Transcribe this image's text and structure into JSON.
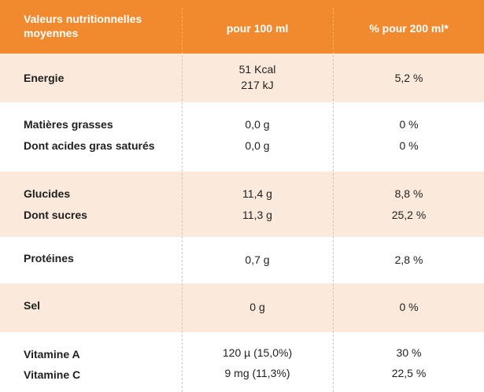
{
  "header": {
    "col1": "Valeurs nutritionnelles moyennes",
    "col2": "pour 100 ml",
    "col3": "% pour 200 ml*"
  },
  "rows": [
    {
      "label": "Energie",
      "per100": [
        "51 Kcal",
        "217 kJ"
      ],
      "per200": "5,2 %"
    },
    {
      "label": "Matières grasses",
      "per100": "0,0 g",
      "per200": "0 %"
    },
    {
      "label": "Dont acides gras saturés",
      "per100": "0,0 g",
      "per200": "0 %"
    },
    {
      "label": "Glucides",
      "per100": "11,4 g",
      "per200": "8,8 %"
    },
    {
      "label": "Dont sucres",
      "per100": "11,3 g",
      "per200": "25,2 %"
    },
    {
      "label": "Protéines",
      "per100": "0,7 g",
      "per200": "2,8 %"
    },
    {
      "label": "Sel",
      "per100": "0 g",
      "per200": "0 %"
    },
    {
      "label": "Vitamine A",
      "per100": "120 µ (15,0%)",
      "per200": "30 %"
    },
    {
      "label": "Vitamine C",
      "per100": "9 mg (11,3%)",
      "per200": "22,5 %"
    }
  ],
  "colors": {
    "header_bg": "#f18a2e",
    "band_bg": "#fbeadb"
  }
}
